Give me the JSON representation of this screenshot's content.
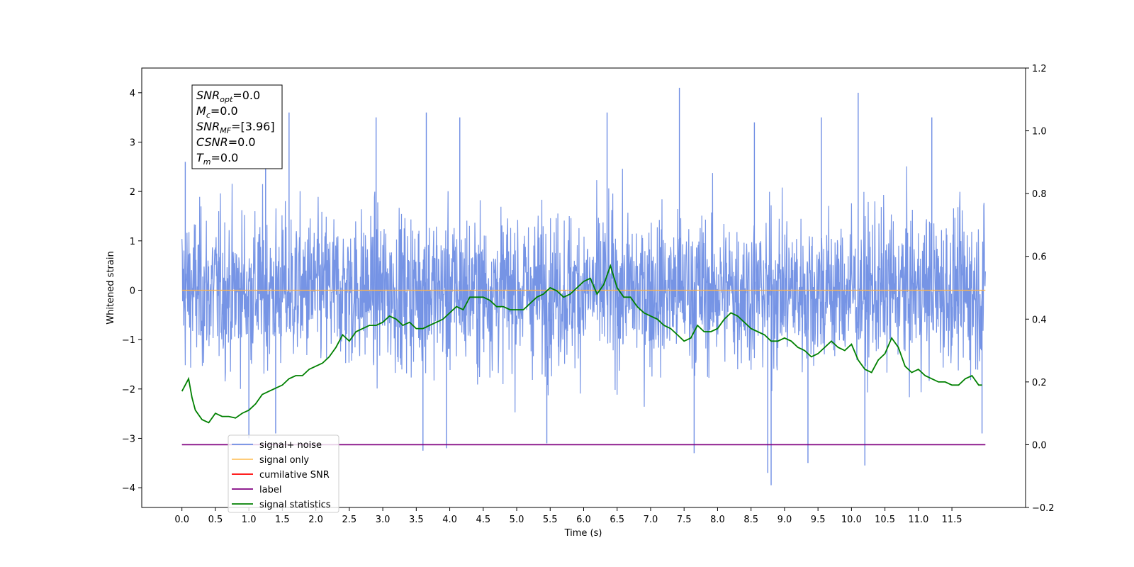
{
  "chart_data": {
    "type": "line",
    "xlabel": "Time (s)",
    "ylabel": "Whitened strain",
    "xlim": [
      -0.6,
      12.6
    ],
    "ylim": [
      -4.4,
      4.5
    ],
    "y2lim": [
      -0.2,
      1.2
    ],
    "x_ticks": [
      0.0,
      0.5,
      1.0,
      1.5,
      2.0,
      2.5,
      3.0,
      3.5,
      4.0,
      4.5,
      5.0,
      5.5,
      6.0,
      6.5,
      7.0,
      7.5,
      8.0,
      8.5,
      9.0,
      9.5,
      10.0,
      10.5,
      11.0,
      11.5
    ],
    "x_tick_labels": [
      "0.0",
      "0.5",
      "1.0",
      "1.5",
      "2.0",
      "2.5",
      "3.0",
      "3.5",
      "4.0",
      "4.5",
      "5.0",
      "5.5",
      "6.0",
      "6.5",
      "7.0",
      "7.5",
      "8.0",
      "8.5",
      "9.0",
      "9.5",
      "10.0",
      "10.5",
      "11.0",
      "11.5"
    ],
    "y_ticks": [
      -4,
      -3,
      -2,
      -1,
      0,
      1,
      2,
      3,
      4
    ],
    "y_tick_labels": [
      "−4",
      "−3",
      "−2",
      "−1",
      "0",
      "1",
      "2",
      "3",
      "4"
    ],
    "y2_ticks": [
      -0.2,
      0.0,
      0.2,
      0.4,
      0.6,
      0.8,
      1.0,
      1.2
    ],
    "y2_tick_labels": [
      "−0.2",
      "0.0",
      "0.2",
      "0.4",
      "0.6",
      "0.8",
      "1.0",
      "1.2"
    ],
    "stats_box": [
      {
        "base": "SNR",
        "sub": "opt",
        "value": "=0.0"
      },
      {
        "base": "M",
        "sub": "c",
        "value": "=0.0"
      },
      {
        "base": "SNR",
        "sub": "MF",
        "value": "=[3.96]"
      },
      {
        "base": "CSNR",
        "sub": "",
        "value": "=0.0"
      },
      {
        "base": "T",
        "sub": "m",
        "value": "=0.0"
      }
    ],
    "legend": {
      "placement": "lower-left",
      "entries": [
        {
          "label": "signal+ noise",
          "color": "#6f8ee4"
        },
        {
          "label": "signal only",
          "color": "#ffc466"
        },
        {
          "label": "cumilative SNR",
          "color": "#ff0000"
        },
        {
          "label": "label",
          "color": "#800080"
        },
        {
          "label": "signal statistics",
          "color": "#008000"
        }
      ]
    },
    "series": [
      {
        "name": "signal+ noise",
        "axis": "left",
        "style": "noise band",
        "x_range": [
          0.0,
          12.0
        ],
        "envelope_upper": 2.2,
        "envelope_lower": -1.8,
        "spikes": [
          {
            "x": 0.05,
            "y": 2.6
          },
          {
            "x": 1.25,
            "y": 3.4
          },
          {
            "x": 1.6,
            "y": 3.6
          },
          {
            "x": 2.9,
            "y": 3.5
          },
          {
            "x": 3.65,
            "y": 3.6
          },
          {
            "x": 4.15,
            "y": 3.5
          },
          {
            "x": 6.35,
            "y": 3.6
          },
          {
            "x": 7.43,
            "y": 4.1
          },
          {
            "x": 8.55,
            "y": 3.4
          },
          {
            "x": 9.55,
            "y": 3.5
          },
          {
            "x": 10.1,
            "y": 4.0
          },
          {
            "x": 11.2,
            "y": 3.5
          },
          {
            "x": 1.4,
            "y": -2.9
          },
          {
            "x": 1.0,
            "y": -3.0
          },
          {
            "x": 3.6,
            "y": -3.25
          },
          {
            "x": 3.95,
            "y": -3.2
          },
          {
            "x": 5.45,
            "y": -3.1
          },
          {
            "x": 7.65,
            "y": -3.3
          },
          {
            "x": 8.8,
            "y": -3.95
          },
          {
            "x": 8.75,
            "y": -3.7
          },
          {
            "x": 9.35,
            "y": -3.5
          },
          {
            "x": 10.2,
            "y": -3.55
          },
          {
            "x": 11.95,
            "y": -2.9
          }
        ]
      },
      {
        "name": "signal only",
        "axis": "left",
        "x": [
          0.0,
          12.0
        ],
        "values": [
          0.0,
          0.0
        ]
      },
      {
        "name": "label",
        "axis": "right",
        "x": [
          0.0,
          12.0
        ],
        "values": [
          0.0,
          0.0
        ]
      },
      {
        "name": "signal statistics",
        "axis": "right",
        "x": [
          0.0,
          0.1,
          0.15,
          0.2,
          0.3,
          0.4,
          0.5,
          0.6,
          0.7,
          0.8,
          0.9,
          1.0,
          1.1,
          1.2,
          1.3,
          1.4,
          1.5,
          1.6,
          1.7,
          1.8,
          1.9,
          2.0,
          2.1,
          2.2,
          2.3,
          2.4,
          2.5,
          2.6,
          2.7,
          2.8,
          2.9,
          3.0,
          3.1,
          3.2,
          3.3,
          3.4,
          3.5,
          3.6,
          3.7,
          3.8,
          3.9,
          4.0,
          4.1,
          4.2,
          4.3,
          4.4,
          4.5,
          4.6,
          4.7,
          4.8,
          4.9,
          5.0,
          5.1,
          5.2,
          5.3,
          5.4,
          5.5,
          5.6,
          5.7,
          5.8,
          5.9,
          6.0,
          6.1,
          6.2,
          6.3,
          6.4,
          6.5,
          6.6,
          6.7,
          6.8,
          6.9,
          7.0,
          7.1,
          7.2,
          7.3,
          7.4,
          7.5,
          7.6,
          7.7,
          7.8,
          7.9,
          8.0,
          8.1,
          8.2,
          8.3,
          8.4,
          8.5,
          8.6,
          8.7,
          8.8,
          8.9,
          9.0,
          9.1,
          9.2,
          9.3,
          9.4,
          9.5,
          9.6,
          9.7,
          9.8,
          9.9,
          10.0,
          10.1,
          10.2,
          10.3,
          10.4,
          10.5,
          10.6,
          10.7,
          10.8,
          10.9,
          11.0,
          11.1,
          11.2,
          11.3,
          11.4,
          11.5,
          11.6,
          11.7,
          11.8,
          11.9,
          11.95
        ],
        "values": [
          0.17,
          0.21,
          0.15,
          0.11,
          0.08,
          0.07,
          0.1,
          0.09,
          0.09,
          0.085,
          0.1,
          0.11,
          0.13,
          0.16,
          0.17,
          0.18,
          0.19,
          0.21,
          0.22,
          0.22,
          0.24,
          0.25,
          0.26,
          0.28,
          0.31,
          0.35,
          0.33,
          0.36,
          0.37,
          0.38,
          0.38,
          0.39,
          0.41,
          0.4,
          0.38,
          0.39,
          0.37,
          0.37,
          0.38,
          0.39,
          0.4,
          0.42,
          0.44,
          0.43,
          0.47,
          0.47,
          0.47,
          0.46,
          0.44,
          0.44,
          0.43,
          0.43,
          0.43,
          0.45,
          0.47,
          0.48,
          0.5,
          0.49,
          0.47,
          0.48,
          0.5,
          0.52,
          0.53,
          0.48,
          0.51,
          0.57,
          0.5,
          0.47,
          0.47,
          0.44,
          0.42,
          0.41,
          0.4,
          0.38,
          0.37,
          0.35,
          0.33,
          0.34,
          0.38,
          0.36,
          0.36,
          0.37,
          0.4,
          0.42,
          0.41,
          0.39,
          0.37,
          0.36,
          0.35,
          0.33,
          0.33,
          0.34,
          0.33,
          0.31,
          0.3,
          0.28,
          0.29,
          0.31,
          0.33,
          0.31,
          0.3,
          0.32,
          0.27,
          0.24,
          0.23,
          0.27,
          0.29,
          0.34,
          0.31,
          0.25,
          0.23,
          0.24,
          0.22,
          0.21,
          0.2,
          0.2,
          0.19,
          0.19,
          0.21,
          0.22,
          0.19,
          0.19
        ]
      }
    ]
  }
}
